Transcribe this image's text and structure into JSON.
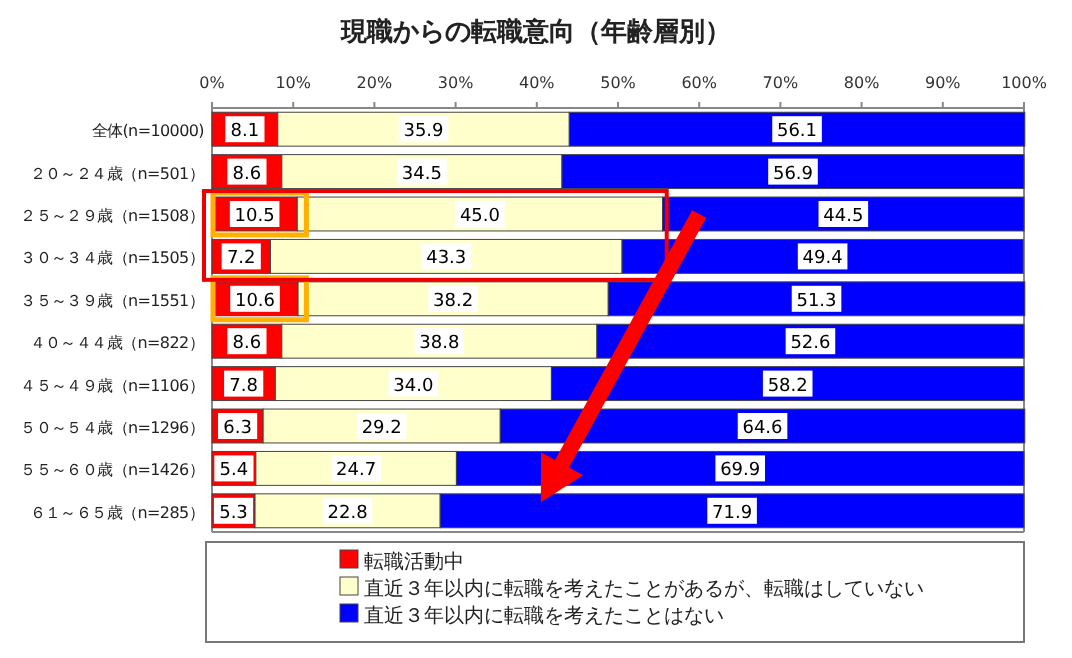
{
  "chart_data": {
    "type": "bar",
    "orientation": "horizontal",
    "stacked": true,
    "title": "現職からの転職意向（年齢層別）",
    "categories": [
      "全体(n=10000)",
      "２０～２４歳（n=501）",
      "２５～２９歳（n=1508）",
      "３０～３４歳（n=1505）",
      "３５～３９歳（n=1551）",
      "４０～４４歳（n=822）",
      "４５～４９歳（n=1106）",
      "５０～５４歳（n=1296）",
      "５５～６０歳（n=1426）",
      "６１～６５歳（n=285）"
    ],
    "series": [
      {
        "name": "転職活動中",
        "color": "#ff0000",
        "values": [
          8.1,
          8.6,
          10.5,
          7.2,
          10.6,
          8.6,
          7.8,
          6.3,
          5.4,
          5.3
        ],
        "value_labels": [
          "8.1",
          "8.6",
          "10.5",
          "7.2",
          "10.6",
          "8.6",
          "7.8",
          "6.3",
          "5.4",
          "5.3"
        ]
      },
      {
        "name": "直近３年以内に転職を考えたことがあるが、転職はしていない",
        "color": "#ffffcc",
        "values": [
          35.9,
          34.5,
          45.0,
          43.3,
          38.2,
          38.8,
          34.0,
          29.2,
          24.7,
          22.8
        ],
        "value_labels": [
          "35.9",
          "34.5",
          "45.0",
          "43.3",
          "38.2",
          "38.8",
          "34.0",
          "29.2",
          "24.7",
          "22.8"
        ]
      },
      {
        "name": "直近３年以内に転職を考えたことはない",
        "color": "#0000ff",
        "values": [
          56.1,
          56.9,
          44.5,
          49.4,
          51.3,
          52.6,
          58.2,
          64.6,
          69.9,
          71.9
        ],
        "value_labels": [
          "56.1",
          "56.9",
          "44.5",
          "49.4",
          "51.3",
          "52.6",
          "58.2",
          "64.6",
          "69.9",
          "71.9"
        ]
      }
    ],
    "xlim": [
      0,
      100
    ],
    "xticks": [
      {
        "value": 0,
        "label": "0%"
      },
      {
        "value": 10,
        "label": "10%"
      },
      {
        "value": 20,
        "label": "20%"
      },
      {
        "value": 30,
        "label": "30%"
      },
      {
        "value": 40,
        "label": "40%"
      },
      {
        "value": 50,
        "label": "50%"
      },
      {
        "value": 60,
        "label": "60%"
      },
      {
        "value": 70,
        "label": "70%"
      },
      {
        "value": 80,
        "label": "80%"
      },
      {
        "value": 90,
        "label": "90%"
      },
      {
        "value": 100,
        "label": "100%"
      }
    ],
    "grid": false,
    "legend": "bottom"
  }
}
